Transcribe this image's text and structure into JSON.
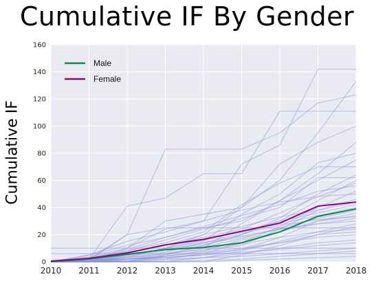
{
  "chart_data": {
    "type": "line",
    "title": "Cumulative IF By Gender",
    "xlabel": "",
    "ylabel": "Cumulative IF",
    "x": [
      2010,
      2011,
      2012,
      2013,
      2014,
      2015,
      2016,
      2017,
      2018
    ],
    "xlim": [
      2010,
      2018
    ],
    "ylim": [
      0,
      160
    ],
    "xticks": [
      2010,
      2011,
      2012,
      2013,
      2014,
      2015,
      2016,
      2017,
      2018
    ],
    "yticks": [
      0,
      20,
      40,
      60,
      80,
      100,
      120,
      140,
      160
    ],
    "grid": true,
    "legend_position": "top-left",
    "series": [
      {
        "name": "Male",
        "color": "#0b8a4c",
        "values": [
          0,
          2,
          5.5,
          9,
          10.5,
          14,
          22,
          33.5,
          39
        ]
      },
      {
        "name": "Female",
        "color": "#8b0a7e",
        "values": [
          0.5,
          2.5,
          6.5,
          12.5,
          16.5,
          22.5,
          28.5,
          41,
          44
        ]
      }
    ],
    "background_series_color": "#8890d8",
    "background_series": [
      [
        0,
        2,
        41,
        47,
        65,
        65,
        111,
        111,
        111
      ],
      [
        0,
        1,
        20,
        83,
        83,
        83,
        95,
        117,
        123
      ],
      [
        0,
        0,
        10,
        24,
        30,
        72,
        86,
        142,
        142
      ],
      [
        0,
        4,
        10,
        30,
        35,
        40,
        60,
        95,
        133
      ],
      [
        0,
        0,
        5,
        10,
        20,
        40,
        72,
        88,
        100
      ],
      [
        10,
        10,
        10,
        10,
        10,
        10,
        10,
        10,
        10
      ],
      [
        6,
        6,
        6,
        6,
        6,
        6,
        6,
        6,
        6
      ],
      [
        0,
        3,
        8,
        14,
        22,
        42,
        58,
        70,
        70
      ],
      [
        0,
        1,
        3,
        10,
        15,
        35,
        50,
        73,
        80
      ],
      [
        0,
        0,
        2,
        5,
        10,
        28,
        45,
        65,
        88
      ],
      [
        0,
        5,
        12,
        18,
        25,
        30,
        45,
        60,
        75
      ],
      [
        0,
        0,
        4,
        8,
        12,
        20,
        32,
        50,
        64
      ],
      [
        0,
        2,
        6,
        12,
        18,
        24,
        36,
        48,
        58
      ],
      [
        0,
        0,
        0,
        2,
        6,
        14,
        26,
        40,
        52
      ],
      [
        0,
        1,
        2,
        4,
        8,
        12,
        24,
        38,
        46
      ],
      [
        0,
        3,
        7,
        12,
        16,
        22,
        30,
        36,
        42
      ],
      [
        0,
        0,
        1,
        3,
        5,
        9,
        18,
        30,
        36
      ],
      [
        0,
        2,
        5,
        9,
        14,
        19,
        24,
        28,
        30
      ],
      [
        0,
        0,
        0,
        0,
        3,
        8,
        15,
        22,
        28
      ],
      [
        0,
        1,
        3,
        6,
        9,
        13,
        18,
        22,
        24
      ],
      [
        0,
        0,
        2,
        4,
        7,
        10,
        14,
        18,
        20
      ],
      [
        0,
        0,
        0,
        1,
        3,
        6,
        10,
        14,
        16
      ],
      [
        0,
        1,
        2,
        3,
        5,
        7,
        9,
        12,
        14
      ],
      [
        0,
        0,
        1,
        2,
        3,
        4,
        6,
        8,
        10
      ],
      [
        0,
        0,
        0,
        0,
        1,
        2,
        4,
        6,
        8
      ],
      [
        0,
        0,
        0,
        0,
        0,
        1,
        2,
        3,
        4
      ],
      [
        0,
        2,
        20,
        25,
        25,
        25,
        25,
        25,
        25
      ],
      [
        0,
        5,
        15,
        22,
        30,
        38,
        44,
        48,
        50
      ],
      [
        0,
        0,
        8,
        16,
        24,
        32,
        40,
        62,
        62
      ],
      [
        0,
        3,
        9,
        18,
        26,
        34,
        42,
        52,
        56
      ],
      [
        0,
        0,
        0,
        5,
        12,
        20,
        30,
        45,
        60
      ],
      [
        0,
        1,
        4,
        10,
        16,
        22,
        28,
        34,
        40
      ],
      [
        0,
        0,
        2,
        6,
        11,
        17,
        25,
        32,
        38
      ],
      [
        0,
        2,
        7,
        12,
        20,
        26,
        33,
        38,
        44
      ],
      [
        0,
        0,
        3,
        7,
        14,
        21,
        27,
        31,
        33
      ],
      [
        0,
        0,
        0,
        4,
        8,
        16,
        22,
        30,
        34
      ],
      [
        0,
        1,
        5,
        9,
        13,
        18,
        24,
        28,
        32
      ],
      [
        0,
        0,
        2,
        3,
        6,
        9,
        14,
        20,
        26
      ],
      [
        0,
        0,
        0,
        0,
        0,
        5,
        12,
        20,
        22
      ]
    ]
  }
}
